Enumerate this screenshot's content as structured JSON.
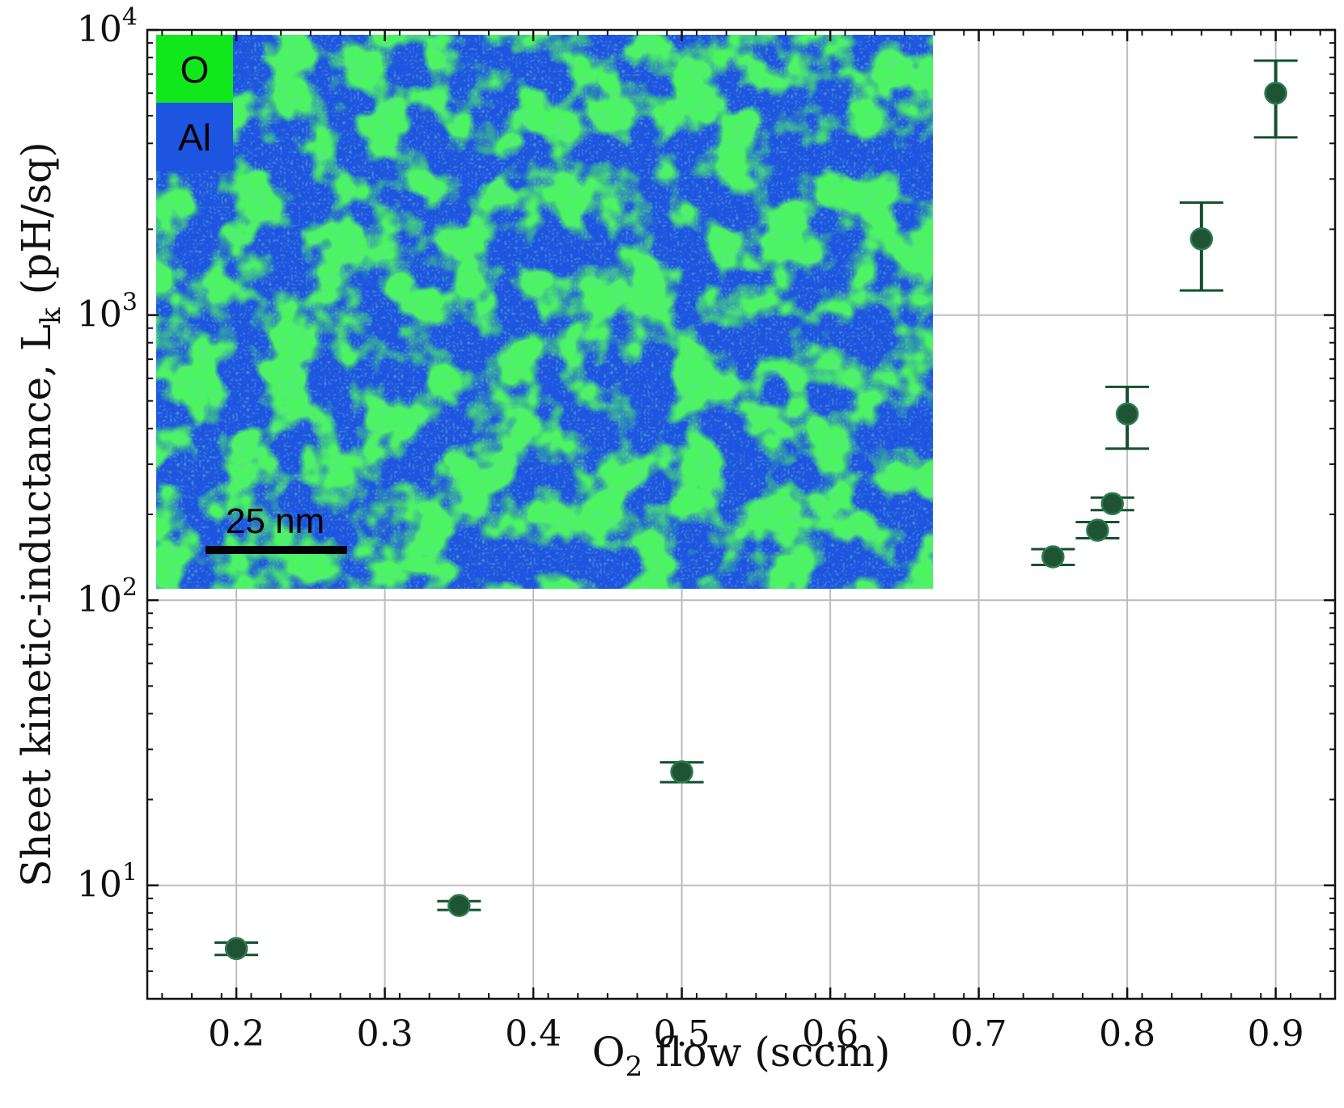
{
  "chart_data": {
    "type": "scatter",
    "title": "",
    "xlabel": {
      "main": "O",
      "sub": "2",
      "rest": " flow (sccm)"
    },
    "ylabel": {
      "main": "Sheet kinetic-inductance, L",
      "sub": "k",
      "rest": " (pH/sq)"
    },
    "xlim": [
      0.14,
      0.94
    ],
    "ylim": [
      4.0,
      10000
    ],
    "yscale": "log",
    "grid": true,
    "x_ticks": [
      0.2,
      0.3,
      0.4,
      0.5,
      0.6,
      0.7,
      0.8,
      0.9
    ],
    "x_tick_labels": [
      "0.2",
      "0.3",
      "0.4",
      "0.5",
      "0.6",
      "0.7",
      "0.8",
      "0.9"
    ],
    "y_ticks": [
      10,
      100,
      1000,
      10000
    ],
    "y_tick_labels": [
      {
        "base": "10",
        "exp": "1"
      },
      {
        "base": "10",
        "exp": "2"
      },
      {
        "base": "10",
        "exp": "3"
      },
      {
        "base": "10",
        "exp": "4"
      }
    ],
    "marker_color": "#14502e",
    "points": [
      {
        "x": 0.2,
        "y": 6.0,
        "ylow": 5.7,
        "yhigh": 6.3
      },
      {
        "x": 0.35,
        "y": 8.5,
        "ylow": 8.2,
        "yhigh": 8.8
      },
      {
        "x": 0.5,
        "y": 25,
        "ylow": 23,
        "yhigh": 27
      },
      {
        "x": 0.75,
        "y": 142,
        "ylow": 133,
        "yhigh": 151
      },
      {
        "x": 0.78,
        "y": 176,
        "ylow": 165,
        "yhigh": 188
      },
      {
        "x": 0.79,
        "y": 218,
        "ylow": 207,
        "yhigh": 229
      },
      {
        "x": 0.8,
        "y": 450,
        "ylow": 340,
        "yhigh": 560
      },
      {
        "x": 0.85,
        "y": 1850,
        "ylow": 1220,
        "yhigh": 2480
      },
      {
        "x": 0.9,
        "y": 6000,
        "ylow": 4200,
        "yhigh": 7800
      }
    ]
  },
  "inset": {
    "legend": [
      {
        "label": "O",
        "color": "#10e81c"
      },
      {
        "label": "Al",
        "color": "#1d55e0"
      }
    ],
    "scale_bar_label": "25 nm"
  }
}
